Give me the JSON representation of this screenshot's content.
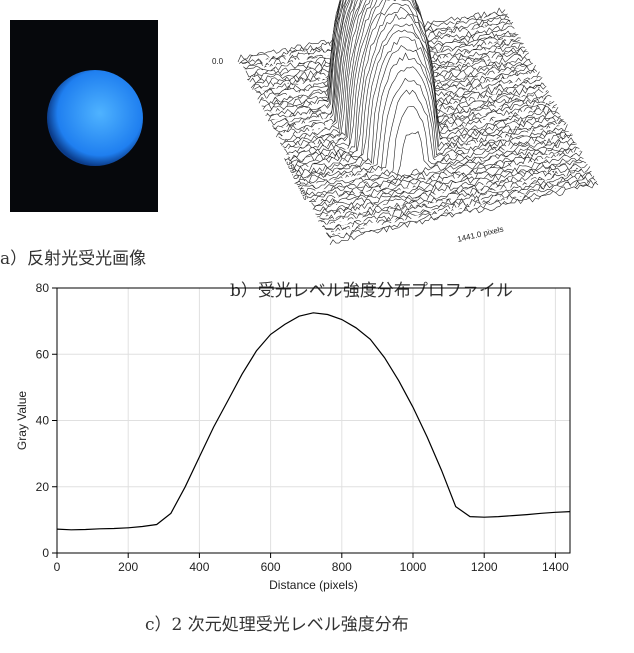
{
  "figure": {
    "caption_a": "a）反射光受光画像",
    "caption_b": "b）受光レベル強度分布プロファイル",
    "caption_c": "c）2 次元処理受光レベル強度分布",
    "surface_labels": [
      "0.0",
      "1359.0 pixels",
      "1441.0 pixels"
    ]
  },
  "chart_data": {
    "type": "line",
    "xlabel": "Distance (pixels)",
    "ylabel": "Gray Value",
    "color": "#000000",
    "x": [
      0,
      40,
      80,
      120,
      160,
      200,
      240,
      280,
      320,
      360,
      400,
      440,
      480,
      520,
      560,
      600,
      640,
      680,
      720,
      760,
      800,
      840,
      880,
      920,
      960,
      1000,
      1040,
      1080,
      1120,
      1160,
      1200,
      1240,
      1280,
      1320,
      1360,
      1400,
      1441
    ],
    "values": [
      7.2,
      7.0,
      7.1,
      7.3,
      7.4,
      7.6,
      8.0,
      8.6,
      12,
      20,
      29,
      38,
      46,
      54,
      61,
      66,
      69,
      71.5,
      72.5,
      72,
      70.5,
      68,
      64.5,
      59,
      52,
      44,
      35,
      25,
      14,
      11,
      10.8,
      11,
      11.3,
      11.6,
      12,
      12.3,
      12.5
    ],
    "xlim": [
      0,
      1441
    ],
    "ylim": [
      0,
      80
    ],
    "xticks": [
      0,
      200,
      400,
      600,
      800,
      1000,
      1200,
      1400
    ],
    "yticks": [
      0,
      20,
      40,
      60,
      80
    ],
    "grid": true
  }
}
